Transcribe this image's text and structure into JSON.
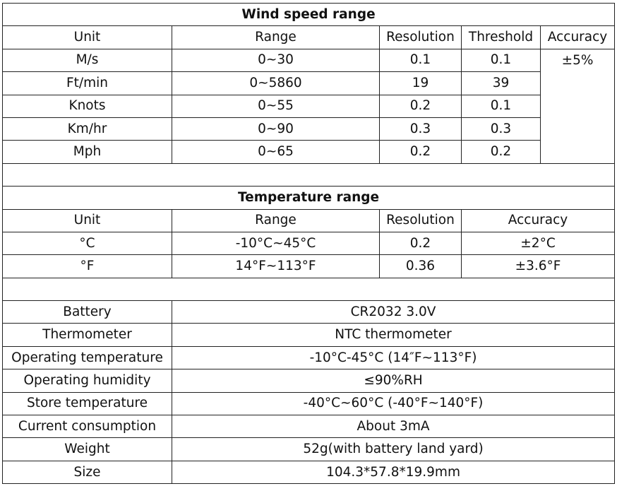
{
  "wind": {
    "title": "Wind speed range",
    "header": [
      "Unit",
      "Range",
      "Resolution",
      "Threshold",
      "Accuracy"
    ],
    "rows": [
      [
        "M/s",
        "0~30",
        "0.1",
        "0.1"
      ],
      [
        "Ft/min",
        "0~5860",
        "19",
        "39"
      ],
      [
        "Knots",
        "0~55",
        "0.2",
        "0.1"
      ],
      [
        "Km/hr",
        "0~90",
        "0.3",
        "0.3"
      ],
      [
        "Mph",
        "0~65",
        "0.2",
        "0.2"
      ]
    ],
    "accuracy": "±5%"
  },
  "temperature": {
    "title": "Temperature range",
    "header": [
      "Unit",
      "Range",
      "Resolution",
      "Accuracy"
    ],
    "rows": [
      [
        "°C",
        "-10°C~45°C",
        "0.2",
        "±2°C"
      ],
      [
        "°F",
        "14°F~113°F",
        "0.36",
        "±3.6°F"
      ]
    ]
  },
  "specs": {
    "rows": [
      [
        "Battery",
        "CR2032 3.0V"
      ],
      [
        "Thermometer",
        "NTC thermometer"
      ],
      [
        "Operating temperature",
        "-10°C-45°C  (14″F~113°F)"
      ],
      [
        "Operating humidity",
        "≤90%RH"
      ],
      [
        "Store temperature",
        "-40°C~60°C (-40°F~140°F)"
      ],
      [
        "Current consumption",
        "About 3mA"
      ],
      [
        "Weight",
        "52g(with battery land yard)"
      ],
      [
        "Size",
        "104.3*57.8*19.9mm"
      ]
    ]
  }
}
